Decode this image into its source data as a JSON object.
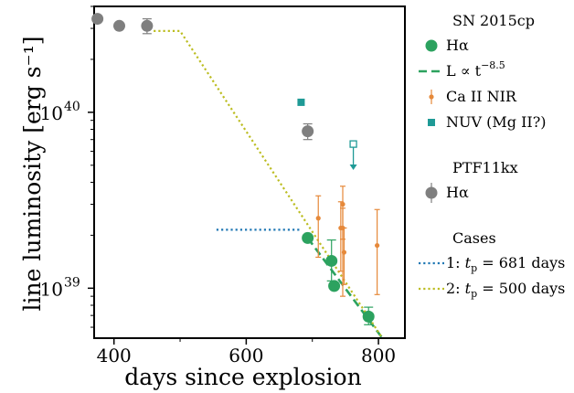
{
  "chart_data": {
    "type": "scatter",
    "xlabel": "days since explosion",
    "ylabel": "line luminosity [erg s⁻¹]",
    "xlim": [
      370,
      840
    ],
    "ylim": [
      5.2e+38,
      4e+40
    ],
    "yscale": "log",
    "grid": false,
    "legend_position": "right, outside plot",
    "x_ticks": [
      {
        "value": 400,
        "label": "400"
      },
      {
        "value": 600,
        "label": "600"
      },
      {
        "value": 800,
        "label": "800"
      }
    ],
    "y_ticks": [
      {
        "value": 1e+39,
        "label": "10",
        "sup": "39"
      },
      {
        "value": 1e+40,
        "label": "10",
        "sup": "40"
      }
    ],
    "legend": {
      "groups": [
        {
          "title": "SN 2015cp",
          "entries": [
            {
              "key": "halpha_2015cp",
              "label": "Hα",
              "marker": "circle-large",
              "color": "#2ca25f"
            },
            {
              "key": "powerlaw",
              "label": "L ∝ t",
              "sup": "−8.5",
              "marker": "dashed-line",
              "color": "#2ca25f"
            },
            {
              "key": "caii",
              "label": "Ca II NIR",
              "marker": "circle-small",
              "color": "#e6893a"
            },
            {
              "key": "nuv",
              "label": "NUV (Mg II?)",
              "marker": "square",
              "color": "#1f9a96"
            }
          ]
        },
        {
          "title": "PTF11kx",
          "entries": [
            {
              "key": "halpha_ptf",
              "label": "Hα",
              "marker": "circle-large",
              "color": "#7f7f7f"
            }
          ]
        },
        {
          "title": "Cases",
          "entries": [
            {
              "key": "case1",
              "label_prefix": "1: ",
              "label_math": "t",
              "label_sub": "p",
              "label_rest": " = 681 days",
              "marker": "dotted-line",
              "color": "#1f77b4"
            },
            {
              "key": "case2",
              "label_prefix": "2: ",
              "label_math": "t",
              "label_sub": "p",
              "label_rest": " = 500 days",
              "marker": "dotted-line",
              "color": "#bcbd22"
            }
          ]
        }
      ]
    },
    "series": [
      {
        "name": "PTF11kx Hα",
        "marker": "circle-large",
        "color": "#7f7f7f",
        "points": [
          {
            "x": 375,
            "y": 3.4e+40
          },
          {
            "x": 408,
            "y": 3.1e+40
          },
          {
            "x": 450,
            "y": 3.1e+40,
            "ylo": 2.8e+40,
            "yhi": 3.4e+40
          },
          {
            "x": 693,
            "y": 7.8e+39,
            "ylo": 7e+39,
            "yhi": 8.6e+39
          }
        ]
      },
      {
        "name": "SN 2015cp Hα",
        "marker": "circle-large",
        "color": "#2ca25f",
        "points": [
          {
            "x": 693,
            "y": 1.93e+39
          },
          {
            "x": 729,
            "y": 1.43e+39,
            "ylo": 1.1e+39,
            "yhi": 1.88e+39
          },
          {
            "x": 733,
            "y": 1.03e+39
          },
          {
            "x": 785,
            "y": 6.9e+38,
            "ylo": 6.2e+38,
            "yhi": 7.8e+38
          }
        ]
      },
      {
        "name": "Ca II NIR",
        "marker": "circle-small",
        "color": "#e6893a",
        "points": [
          {
            "x": 709,
            "y": 2.5e+39,
            "ylo": 1.5e+39,
            "yhi": 3.35e+39
          },
          {
            "x": 743,
            "y": 2.2e+39,
            "ylo": 1.25e+39,
            "yhi": 3.1e+39
          },
          {
            "x": 746,
            "y": 3e+39,
            "ylo": 1.9e+39,
            "yhi": 3.8e+39
          },
          {
            "x": 746,
            "y": 2.2e+39,
            "ylo": 9e+38,
            "yhi": 2.85e+39
          },
          {
            "x": 748,
            "y": 1.6e+39,
            "ylo": 1.05e+39,
            "yhi": 2.2e+39
          },
          {
            "x": 798,
            "y": 1.75e+39,
            "ylo": 9.2e+38,
            "yhi": 2.8e+39
          }
        ]
      },
      {
        "name": "NUV (Mg II?)",
        "marker": "square",
        "color": "#1f9a96",
        "points": [
          {
            "x": 683,
            "y": 1.14e+40
          },
          {
            "x": 762,
            "y": 6.6e+39,
            "upper_limit": true,
            "arrow_to": 4.7e+39
          }
        ]
      }
    ],
    "lines": [
      {
        "name": "L ∝ t^−8.5",
        "style": "dashed",
        "color": "#2ca25f",
        "points": [
          {
            "x": 693,
            "y": 1.93e+39
          },
          {
            "x": 806,
            "y": 5.2e+38
          }
        ]
      },
      {
        "name": "1: t_p = 681 days",
        "style": "dotted",
        "color": "#1f77b4",
        "points": [
          {
            "x": 555,
            "y": 2.15e+39
          },
          {
            "x": 681,
            "y": 2.15e+39
          }
        ]
      },
      {
        "name": "2: t_p = 500 days",
        "style": "dotted",
        "color": "#bcbd22",
        "points": [
          {
            "x": 460,
            "y": 2.9e+40
          },
          {
            "x": 500,
            "y": 2.9e+40
          },
          {
            "x": 806,
            "y": 5.2e+38
          }
        ]
      }
    ]
  }
}
